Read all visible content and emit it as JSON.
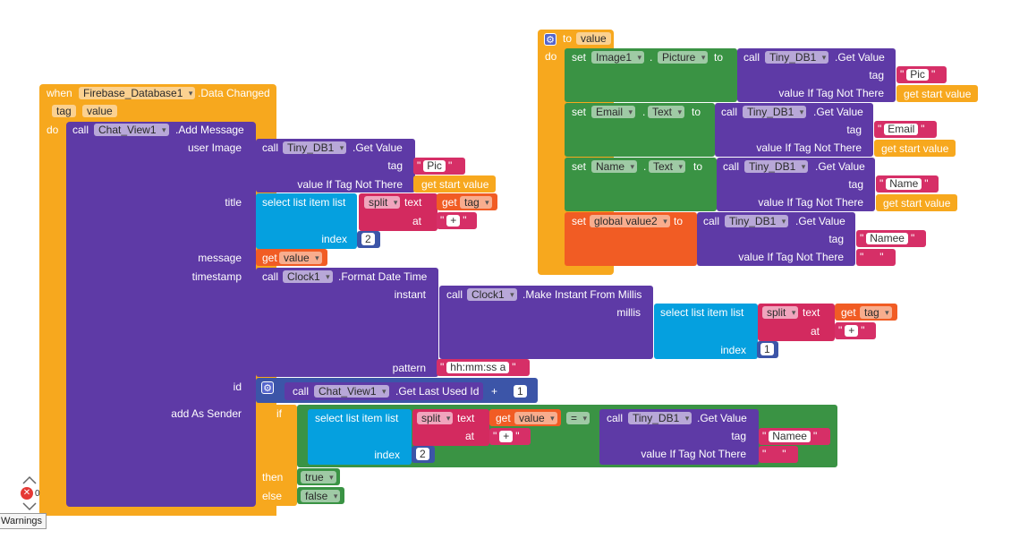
{
  "event_block": {
    "when": "when",
    "component": "Firebase_Database1",
    "event": ".Data Changed",
    "params": [
      "tag",
      "value"
    ],
    "do": "do"
  },
  "add_message": {
    "call": "call",
    "component": "Chat_View1",
    "method": ".Add Message",
    "user_image_label": "user Image",
    "title_label": "title",
    "message_label": "message",
    "timestamp_label": "timestamp",
    "id_label": "id",
    "add_as_sender_label": "add As Sender"
  },
  "userimage_getvalue": {
    "call": "call",
    "component": "Tiny_DB1",
    "method": ".Get Value",
    "tag_label": "tag",
    "tag_value": "Pic",
    "vitnt_label": "value If Tag Not There",
    "vitnt_value": "get start value"
  },
  "title_select": {
    "label": "select list item  list",
    "index_label": "index",
    "index_value": "2",
    "split": "split",
    "text_label": "text",
    "at_label": "at",
    "get": "get",
    "get_var": "tag",
    "at_value": "+"
  },
  "message_get": {
    "get": "get",
    "var": "value"
  },
  "timestamp": {
    "call": "call",
    "component": "Clock1",
    "method": ".Format Date Time",
    "instant_label": "instant",
    "pattern_label": "pattern",
    "pattern_value": "hh:mm:ss a",
    "inner_call": "call",
    "inner_component": "Clock1",
    "inner_method": ".Make Instant From Millis",
    "millis_label": "millis",
    "select_label": "select list item  list",
    "split": "split",
    "text_label": "text",
    "get": "get",
    "get_var": "tag",
    "at_label": "at",
    "at_value": "+",
    "index_label": "index",
    "index_value": "1"
  },
  "id_block": {
    "call": "call",
    "component": "Chat_View1",
    "method": ".Get Last Used Id",
    "plus": "+",
    "num": "1"
  },
  "sender_if": {
    "if": "if",
    "then": "then",
    "else": "else",
    "then_value": "true",
    "else_value": "false",
    "select_label": "select list item  list",
    "split": "split",
    "text_label": "text",
    "get": "get",
    "get_var": "value",
    "at_label": "at",
    "at_value": "+",
    "index_label": "index",
    "index_value": "2",
    "eq": "=",
    "call": "call",
    "component": "Tiny_DB1",
    "method": ".Get Value",
    "tag_label": "tag",
    "tag_value": "Namee",
    "vitnt_label": "value If Tag Not There",
    "vitnt_value": ""
  },
  "procedure": {
    "to": "to",
    "name": "value",
    "do": "do",
    "set": "set",
    "to_word": "to",
    "rows": [
      {
        "component": "Image1",
        "property": "Picture",
        "call": "call",
        "db": "Tiny_DB1",
        "method": ".Get Value",
        "tag_label": "tag",
        "tag": "Pic",
        "vitnt_label": "value If Tag Not There",
        "vitnt": "get start value"
      },
      {
        "component": "Email",
        "property": "Text",
        "call": "call",
        "db": "Tiny_DB1",
        "method": ".Get Value",
        "tag_label": "tag",
        "tag": "Email",
        "vitnt_label": "value If Tag Not There",
        "vitnt": "get start value"
      },
      {
        "component": "Name",
        "property": "Text",
        "call": "call",
        "db": "Tiny_DB1",
        "method": ".Get Value",
        "tag_label": "tag",
        "tag": "Name",
        "vitnt_label": "value If Tag Not There",
        "vitnt": "get start value"
      },
      {
        "component": "global value2",
        "property": "",
        "call": "call",
        "db": "Tiny_DB1",
        "method": ".Get Value",
        "tag_label": "tag",
        "tag": "Namee",
        "vitnt_label": "value If Tag Not There",
        "vitnt": ""
      }
    ]
  },
  "workspace": {
    "error_count": "0",
    "warnings_label": "Warnings"
  },
  "colors": {
    "event": "#f7a81e",
    "procedure_call": "#5e3aa6",
    "setter": "#3a9344",
    "list": "#05a0df",
    "text": "#d62f67",
    "variable": "#f15c24",
    "math": "#3c55a8"
  }
}
